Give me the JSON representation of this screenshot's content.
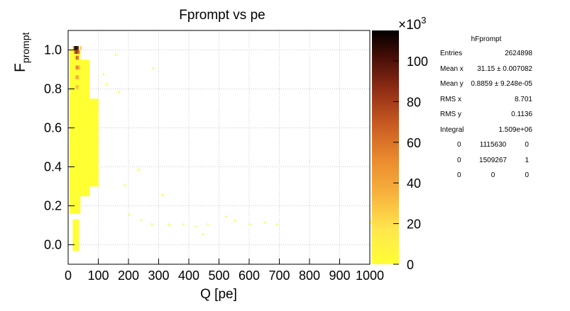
{
  "chart_data": {
    "type": "heatmap",
    "title": "Fprompt vs pe",
    "xlabel": "Q [pe]",
    "ylabel_main": "F",
    "ylabel_sub": "prompt",
    "xlim": [
      0,
      1000
    ],
    "ylim": [
      -0.1,
      1.1
    ],
    "x_ticks": [
      0,
      100,
      200,
      300,
      400,
      500,
      600,
      700,
      800,
      900,
      1000
    ],
    "y_ticks": [
      0.0,
      0.2,
      0.4,
      0.6,
      0.8,
      1.0
    ],
    "y_tick_labels": [
      "0.0",
      "0.2",
      "0.4",
      "0.6",
      "0.8",
      "1.0"
    ],
    "z_range": [
      0,
      115
    ],
    "z_ticks": [
      0,
      20,
      40,
      60,
      80,
      100
    ],
    "z_multiplier": "×10",
    "z_exponent": "3",
    "grid": true,
    "cells": [
      {
        "x": 20,
        "y": 1.0,
        "z": 115
      },
      {
        "x": 25,
        "y": 1.0,
        "z": 110
      },
      {
        "x": 30,
        "y": 1.0,
        "z": 95
      },
      {
        "x": 20,
        "y": 0.98,
        "z": 70
      },
      {
        "x": 25,
        "y": 0.98,
        "z": 85
      },
      {
        "x": 30,
        "y": 0.98,
        "z": 75
      },
      {
        "x": 25,
        "y": 0.95,
        "z": 65
      },
      {
        "x": 30,
        "y": 0.95,
        "z": 60
      },
      {
        "x": 25,
        "y": 0.9,
        "z": 55
      },
      {
        "x": 30,
        "y": 0.9,
        "z": 50
      },
      {
        "x": 25,
        "y": 0.85,
        "z": 40
      },
      {
        "x": 30,
        "y": 0.85,
        "z": 38
      },
      {
        "x": 25,
        "y": 0.8,
        "z": 30
      },
      {
        "x": 30,
        "y": 0.8,
        "z": 28
      },
      {
        "x": 35,
        "y": 0.9,
        "z": 30
      },
      {
        "x": 35,
        "y": 0.98,
        "z": 40
      },
      {
        "x": 40,
        "y": 1.0,
        "z": 25
      },
      {
        "x": 15,
        "y": 1.0,
        "z": 30
      }
    ]
  },
  "stats_box": {
    "title": "hFprompt",
    "rows": [
      {
        "label": "Entries",
        "value": "2624898"
      },
      {
        "label": "Mean x",
        "value": "31.15 ± 0.007082"
      },
      {
        "label": "Mean y",
        "value": "0.8859 ± 9.248e-05"
      },
      {
        "label": "RMS x",
        "value": "8.701"
      },
      {
        "label": "RMS y",
        "value": "0.1136"
      },
      {
        "label": "Integral",
        "value": "1.509e+06"
      }
    ],
    "grid": [
      [
        "0",
        "1115630",
        "0"
      ],
      [
        "0",
        "1509267",
        "1"
      ],
      [
        "0",
        "0",
        "0"
      ]
    ]
  }
}
